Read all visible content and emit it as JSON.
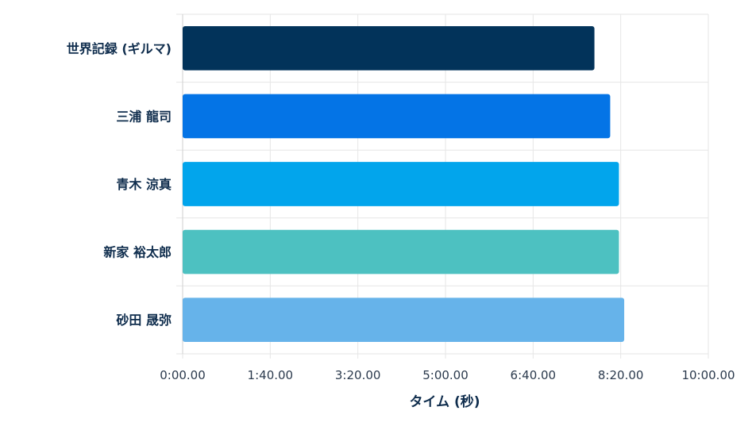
{
  "chart_data": {
    "type": "bar",
    "orientation": "horizontal",
    "title": "",
    "xlabel": "タイム (秒)",
    "ylabel": "",
    "xlim": [
      0,
      600
    ],
    "categories": [
      "世界記録 (ギルマ)",
      "三浦 龍司",
      "青木 涼真",
      "新家 裕太郎",
      "砂田 晟弥"
    ],
    "values": [
      470,
      488,
      498,
      498,
      504
    ],
    "x_ticks": [
      "0:00.00",
      "1:40.00",
      "3:20.00",
      "5:00.00",
      "6:40.00",
      "8:20.00",
      "10:00.00"
    ],
    "colors": [
      "#02335a",
      "#0474e6",
      "#02a5ec",
      "#4dc1c1",
      "#66b3ea"
    ],
    "grid": true,
    "legend": "none"
  }
}
